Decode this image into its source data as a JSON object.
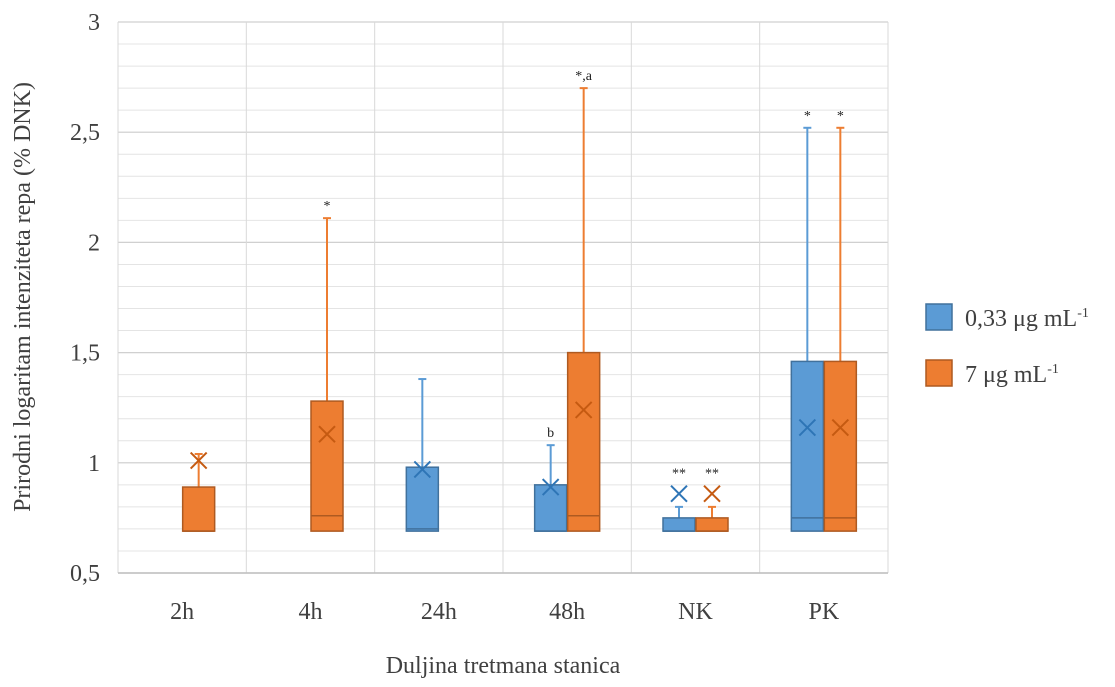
{
  "chart_data": {
    "type": "box",
    "ylabel": "Prirodni logaritam intenziteta repa (% DNK)",
    "xlabel": "Duljina tretmana stanica",
    "ylim": [
      0.5,
      3
    ],
    "yticks": [
      0.5,
      1,
      1.5,
      2,
      2.5,
      3
    ],
    "ytick_labels": [
      "0,5",
      "1",
      "1,5",
      "2",
      "2,5",
      "3"
    ],
    "minor_grid_step": 0.1,
    "grid": true,
    "legend_position": "right",
    "categories": [
      "2h",
      "4h",
      "24h",
      "48h",
      "NK",
      "PK"
    ],
    "series": [
      {
        "name": "0,33 μg mL",
        "name_sup": "-1",
        "color": "#5b9bd5",
        "stroke": "#41719c",
        "boxes": [
          null,
          null,
          {
            "min": 0.69,
            "q1": 0.69,
            "median": 0.7,
            "q3": 0.98,
            "max": 1.38,
            "mean": 0.97,
            "annotation": ""
          },
          {
            "min": 0.69,
            "q1": 0.69,
            "median": 0.69,
            "q3": 0.9,
            "max": 1.08,
            "mean": 0.89,
            "annotation": "b"
          },
          {
            "min": 0.69,
            "q1": 0.69,
            "median": 0.69,
            "q3": 0.75,
            "max": 0.8,
            "mean": 0.86,
            "annotation": "**"
          },
          {
            "min": 0.69,
            "q1": 0.69,
            "median": 0.75,
            "q3": 1.46,
            "max": 2.52,
            "mean": 1.16,
            "annotation": "*"
          }
        ]
      },
      {
        "name": "7 μg mL",
        "name_sup": "-1",
        "color": "#ed7d31",
        "stroke": "#ae5a21",
        "boxes": [
          {
            "min": 0.69,
            "q1": 0.69,
            "median": 0.69,
            "q3": 0.89,
            "max": 1.04,
            "mean": 1.01,
            "annotation": ""
          },
          {
            "min": 0.69,
            "q1": 0.69,
            "median": 0.76,
            "q3": 1.28,
            "max": 2.11,
            "mean": 1.13,
            "annotation": "*"
          },
          null,
          {
            "min": 0.69,
            "q1": 0.69,
            "median": 0.76,
            "q3": 1.5,
            "max": 2.7,
            "mean": 1.24,
            "annotation": "*,a"
          },
          {
            "min": 0.69,
            "q1": 0.69,
            "median": 0.69,
            "q3": 0.75,
            "max": 0.8,
            "mean": 0.86,
            "annotation": "**"
          },
          {
            "min": 0.69,
            "q1": 0.69,
            "median": 0.75,
            "q3": 1.46,
            "max": 2.52,
            "mean": 1.16,
            "annotation": "*"
          }
        ]
      }
    ]
  }
}
